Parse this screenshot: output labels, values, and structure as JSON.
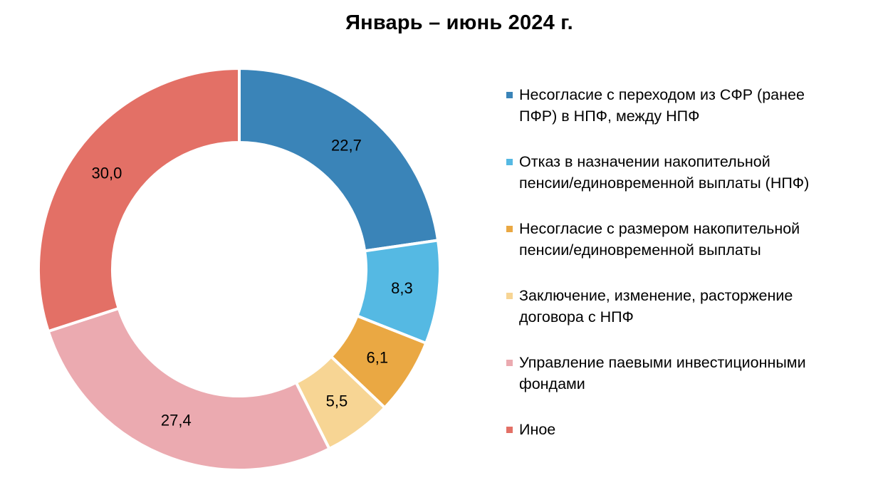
{
  "chart_data": {
    "type": "pie",
    "title": "Январь – июнь 2024 г.",
    "legend_position": "right",
    "slices": [
      {
        "label": "Несогласие с переходом из СФР (ранее ПФР) в НПФ, между НПФ",
        "value": 22.7,
        "value_label": "22,7",
        "color": "#3A84B8"
      },
      {
        "label": "Отказ в назначении накопительной пенсии/единовременной выплаты (НПФ)",
        "value": 8.3,
        "value_label": "8,3",
        "color": "#55B9E3"
      },
      {
        "label": "Несогласие с размером накопительной пенсии/единовременной выплаты",
        "value": 6.1,
        "value_label": "6,1",
        "color": "#EAA843"
      },
      {
        "label": "Заключение, изменение, расторжение договора с НПФ",
        "value": 5.5,
        "value_label": "5,5",
        "color": "#F7D594"
      },
      {
        "label": "Управление паевыми инвестиционными фондами",
        "value": 27.4,
        "value_label": "27,4",
        "color": "#EBAAB0"
      },
      {
        "label": "Иное",
        "value": 30.0,
        "value_label": "30,0",
        "color": "#E37066"
      }
    ]
  },
  "legend": {
    "items": [
      {
        "line1": "Несогласие с переходом из СФР (ранее",
        "line2": "ПФР) в НПФ, между НПФ",
        "color": "#3A84B8"
      },
      {
        "line1": "Отказ в назначении накопительной",
        "line2": "пенсии/единовременной выплаты (НПФ)",
        "color": "#55B9E3"
      },
      {
        "line1": "Несогласие с размером накопительной",
        "line2": "пенсии/единовременной выплаты",
        "color": "#EAA843"
      },
      {
        "line1": "Заключение, изменение, расторжение",
        "line2": "договора с НПФ",
        "color": "#F7D594"
      },
      {
        "line1": "Управление паевыми инвестиционными",
        "line2": "фондами",
        "color": "#EBAAB0"
      },
      {
        "line1": "Иное",
        "line2": "",
        "color": "#E37066"
      }
    ]
  }
}
